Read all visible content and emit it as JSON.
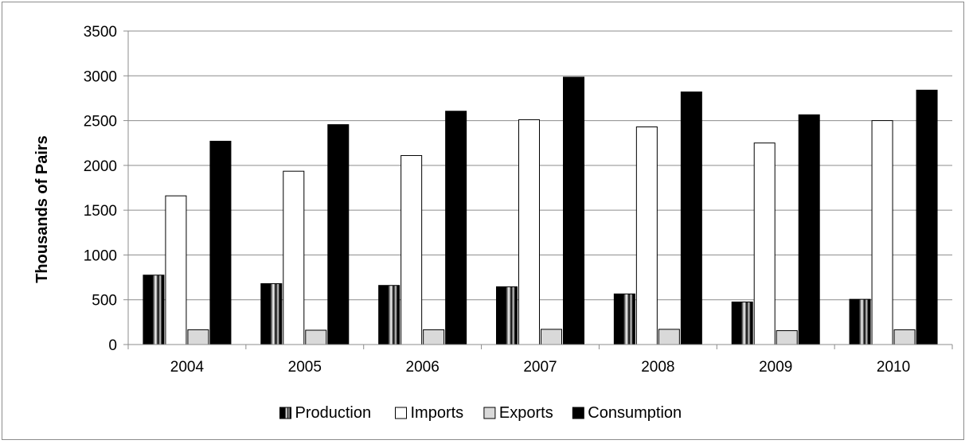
{
  "chart_data": {
    "type": "bar",
    "title": "",
    "xlabel": "",
    "ylabel": "Thousands of Pairs",
    "ylim": [
      0,
      3500
    ],
    "yticks": [
      0,
      500,
      1000,
      1500,
      2000,
      2500,
      3000,
      3500
    ],
    "grid": true,
    "legend_position": "bottom",
    "categories": [
      "2004",
      "2005",
      "2006",
      "2007",
      "2008",
      "2009",
      "2010"
    ],
    "series": [
      {
        "name": "Production",
        "values": [
          775,
          680,
          660,
          645,
          565,
          475,
          505
        ],
        "fill": "striped-black",
        "color": "#000000"
      },
      {
        "name": "Imports",
        "values": [
          1660,
          1935,
          2110,
          2510,
          2430,
          2250,
          2500
        ],
        "fill": "white",
        "color": "#ffffff"
      },
      {
        "name": "Exports",
        "values": [
          165,
          160,
          165,
          170,
          170,
          155,
          165
        ],
        "fill": "light-gray",
        "color": "#d9d9d9"
      },
      {
        "name": "Consumption",
        "values": [
          2270,
          2455,
          2605,
          2985,
          2820,
          2565,
          2840
        ],
        "fill": "black",
        "color": "#000000"
      }
    ]
  }
}
